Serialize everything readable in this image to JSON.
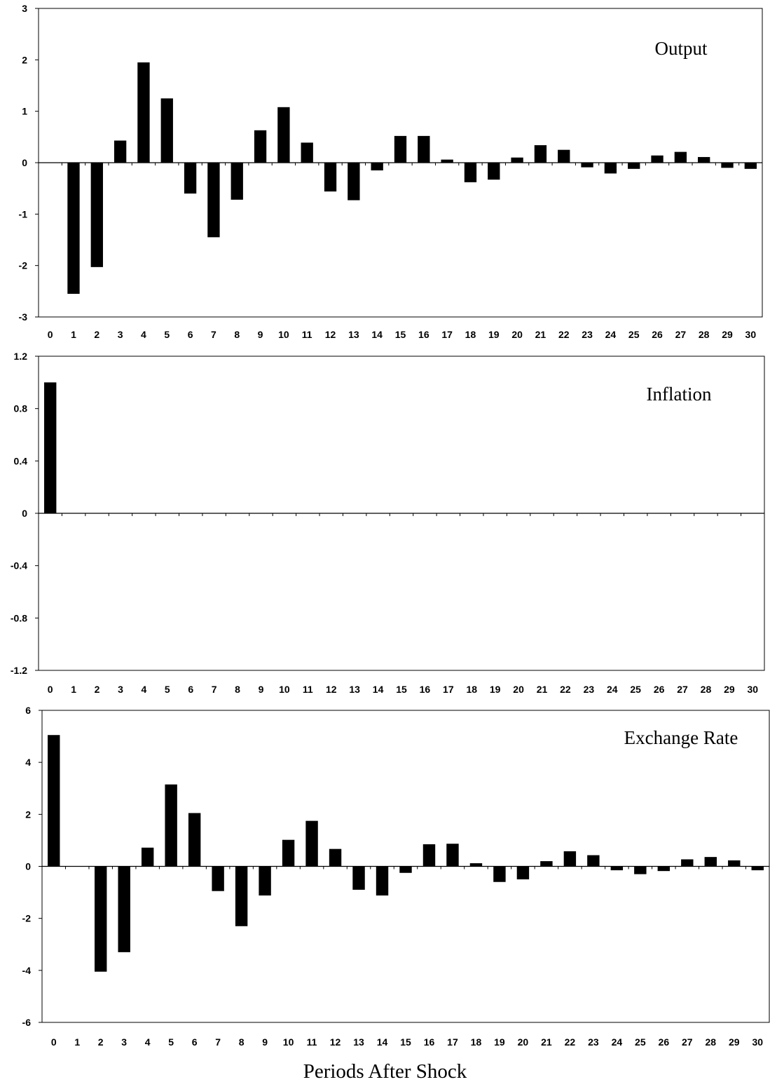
{
  "xlabel": "Periods After Shock",
  "chart_data": [
    {
      "type": "bar",
      "title": "Output",
      "categories": [
        "0",
        "1",
        "2",
        "3",
        "4",
        "5",
        "6",
        "7",
        "8",
        "9",
        "10",
        "11",
        "12",
        "13",
        "14",
        "15",
        "16",
        "17",
        "18",
        "19",
        "20",
        "21",
        "22",
        "23",
        "24",
        "25",
        "26",
        "27",
        "28",
        "29",
        "30"
      ],
      "values": [
        0,
        -2.55,
        -2.03,
        0.43,
        1.95,
        1.25,
        -0.6,
        -1.45,
        -0.72,
        0.63,
        1.08,
        0.39,
        -0.56,
        -0.73,
        -0.15,
        0.52,
        0.52,
        0.06,
        -0.38,
        -0.33,
        0.1,
        0.34,
        0.25,
        -0.09,
        -0.21,
        -0.12,
        0.14,
        0.21,
        0.11,
        -0.1,
        -0.12
      ],
      "ylim": [
        -3,
        3
      ],
      "yticks": [
        3,
        2,
        1,
        0,
        -1,
        -2,
        -3
      ],
      "ytick_labels": [
        "3",
        "2",
        "1",
        "0",
        "-1",
        "-2",
        "-3"
      ],
      "grid": false,
      "legend": "none"
    },
    {
      "type": "bar",
      "title": "Inflation",
      "categories": [
        "0",
        "1",
        "2",
        "3",
        "4",
        "5",
        "6",
        "7",
        "8",
        "9",
        "10",
        "11",
        "12",
        "13",
        "14",
        "15",
        "16",
        "17",
        "18",
        "19",
        "20",
        "21",
        "22",
        "23",
        "24",
        "25",
        "26",
        "27",
        "28",
        "29",
        "30"
      ],
      "values": [
        1.0,
        0,
        0,
        0,
        0,
        0,
        0,
        0,
        0,
        0,
        0,
        0,
        0,
        0,
        0,
        0,
        0,
        0,
        0,
        0,
        0,
        0,
        0,
        0,
        0,
        0,
        0,
        0,
        0,
        0,
        0
      ],
      "ylim": [
        -1.2,
        1.2
      ],
      "yticks": [
        1.2,
        0.8,
        0.4,
        0,
        -0.4,
        -0.8,
        -1.2
      ],
      "ytick_labels": [
        "1.2",
        "0.8",
        "0.4",
        "0",
        "-0.4",
        "-0.8",
        "-1.2"
      ],
      "grid": false,
      "legend": "none"
    },
    {
      "type": "bar",
      "title": "Exchange Rate",
      "categories": [
        "0",
        "1",
        "2",
        "3",
        "4",
        "5",
        "6",
        "7",
        "8",
        "9",
        "10",
        "11",
        "12",
        "13",
        "14",
        "15",
        "16",
        "17",
        "18",
        "19",
        "20",
        "21",
        "22",
        "23",
        "24",
        "25",
        "26",
        "27",
        "28",
        "29",
        "30"
      ],
      "values": [
        5.05,
        0,
        -4.05,
        -3.3,
        0.72,
        3.15,
        2.05,
        -0.95,
        -2.3,
        -1.12,
        1.02,
        1.75,
        0.67,
        -0.9,
        -1.12,
        -0.25,
        0.85,
        0.87,
        0.12,
        -0.6,
        -0.5,
        0.2,
        0.58,
        0.43,
        -0.15,
        -0.3,
        -0.18,
        0.27,
        0.36,
        0.23,
        -0.15
      ],
      "ylim": [
        -6,
        6
      ],
      "yticks": [
        6,
        4,
        2,
        0,
        -2,
        -4,
        -6
      ],
      "ytick_labels": [
        "6",
        "4",
        "2",
        "0",
        "-2",
        "-4",
        "-6"
      ],
      "grid": false,
      "legend": "none"
    }
  ]
}
